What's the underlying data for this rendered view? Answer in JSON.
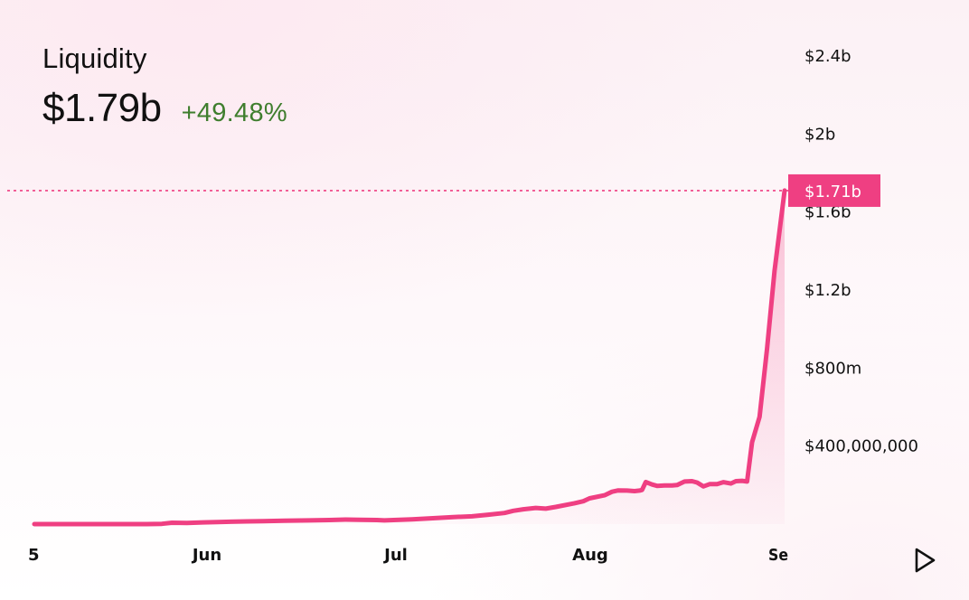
{
  "header": {
    "title": "Liquidity",
    "value": "$1.79b",
    "change": "+49.48%",
    "change_color": "#3f7e2e"
  },
  "chart_data": {
    "type": "area",
    "x_ticks": [
      "5",
      "Jun",
      "Jul",
      "Aug",
      "Se"
    ],
    "y_ticks": [
      {
        "value": 400000000,
        "label": "$400,000,000"
      },
      {
        "value": 800000000,
        "label": "$800m"
      },
      {
        "value": 1200000000,
        "label": "$1.2b"
      },
      {
        "value": 1600000000,
        "label": "$1.6b"
      },
      {
        "value": 2000000000,
        "label": "$2b"
      },
      {
        "value": 2400000000,
        "label": "$2.4b"
      }
    ],
    "ylim": [
      0,
      2400000000
    ],
    "line_color": "#ef3f82",
    "current_price": {
      "value": 1710000000,
      "label": "$1.71b"
    },
    "series": [
      {
        "values": [
          [
            0,
            0
          ],
          [
            90,
            0
          ],
          [
            102,
            1500000
          ],
          [
            110,
            7000000
          ],
          [
            122,
            6000000
          ],
          [
            135,
            9000000
          ],
          [
            150,
            11000000
          ],
          [
            170,
            14000000
          ],
          [
            183,
            15000000
          ],
          [
            200,
            17000000
          ],
          [
            220,
            19000000
          ],
          [
            236,
            21000000
          ],
          [
            249,
            23000000
          ],
          [
            260,
            22000000
          ],
          [
            274,
            21000000
          ],
          [
            280,
            19000000
          ],
          [
            302,
            24000000
          ],
          [
            322,
            31000000
          ],
          [
            335,
            36000000
          ],
          [
            350,
            40000000
          ],
          [
            363,
            48000000
          ],
          [
            376,
            57000000
          ],
          [
            383,
            68000000
          ],
          [
            391,
            76000000
          ],
          [
            401,
            83000000
          ],
          [
            409,
            79000000
          ],
          [
            417,
            88000000
          ],
          [
            432,
            107000000
          ],
          [
            439,
            117000000
          ],
          [
            444,
            132000000
          ],
          [
            456,
            148000000
          ],
          [
            462,
            166000000
          ],
          [
            467,
            173000000
          ],
          [
            474,
            172000000
          ],
          [
            480,
            169000000
          ],
          [
            484,
            172000000
          ],
          [
            486,
            175000000
          ],
          [
            489,
            216000000
          ],
          [
            494,
            203000000
          ],
          [
            498,
            196000000
          ],
          [
            504,
            198000000
          ],
          [
            510,
            198000000
          ],
          [
            514,
            200000000
          ],
          [
            520,
            218000000
          ],
          [
            526,
            220000000
          ],
          [
            530,
            213000000
          ],
          [
            535,
            193000000
          ],
          [
            540,
            205000000
          ],
          [
            546,
            205000000
          ],
          [
            551,
            215000000
          ],
          [
            557,
            208000000
          ],
          [
            561,
            220000000
          ],
          [
            566,
            222000000
          ],
          [
            570,
            218000000
          ],
          [
            574,
            420000000
          ],
          [
            580,
            550000000
          ],
          [
            586,
            900000000
          ],
          [
            592,
            1300000000
          ],
          [
            600,
            1710000000
          ]
        ]
      }
    ]
  },
  "controls": {
    "play_icon": "play-icon"
  }
}
